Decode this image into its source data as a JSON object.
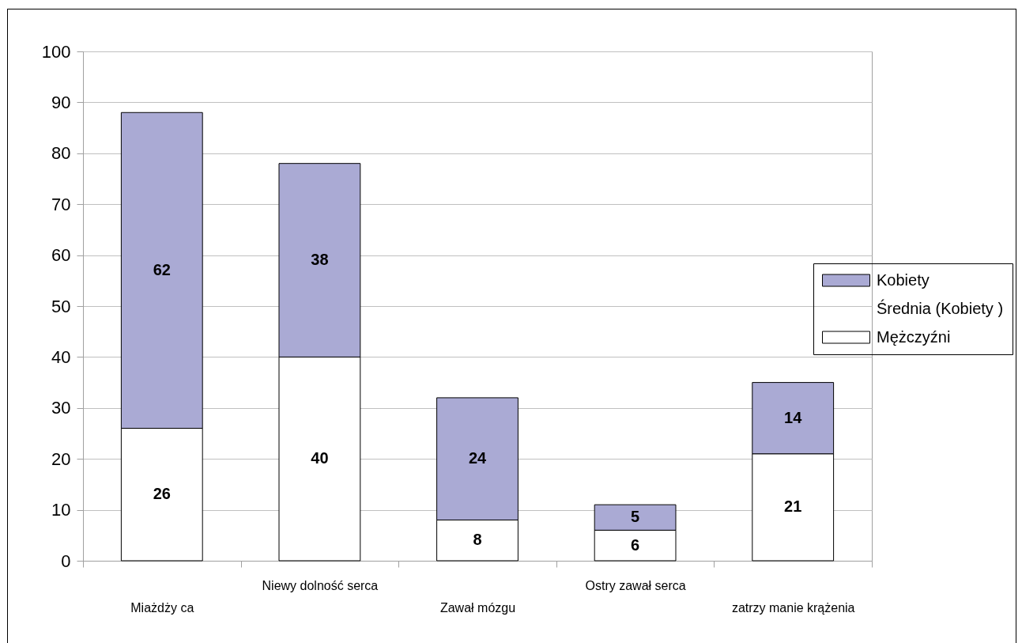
{
  "chart_data": {
    "type": "bar",
    "stacked": true,
    "categories": [
      "Miażdży ca",
      "Niewy dolność serca",
      "Zawał mózgu",
      "Ostry zawał serca",
      "zatrzy manie krążenia"
    ],
    "series": [
      {
        "name": "Mężczyźni",
        "color": "#ffffff",
        "values": [
          26,
          40,
          8,
          6,
          21
        ]
      },
      {
        "name": "Średnia (Kobiety )",
        "type": "line",
        "values": [
          null,
          null,
          null,
          null,
          null
        ]
      },
      {
        "name": "Kobiety",
        "color": "#aaaad4",
        "values": [
          62,
          38,
          24,
          5,
          14
        ]
      }
    ],
    "ylim": [
      0,
      100
    ],
    "yticks": [
      0,
      10,
      20,
      30,
      40,
      50,
      60,
      70,
      80,
      90,
      100
    ],
    "grid": "y",
    "legend": "right",
    "data_labels": true
  }
}
